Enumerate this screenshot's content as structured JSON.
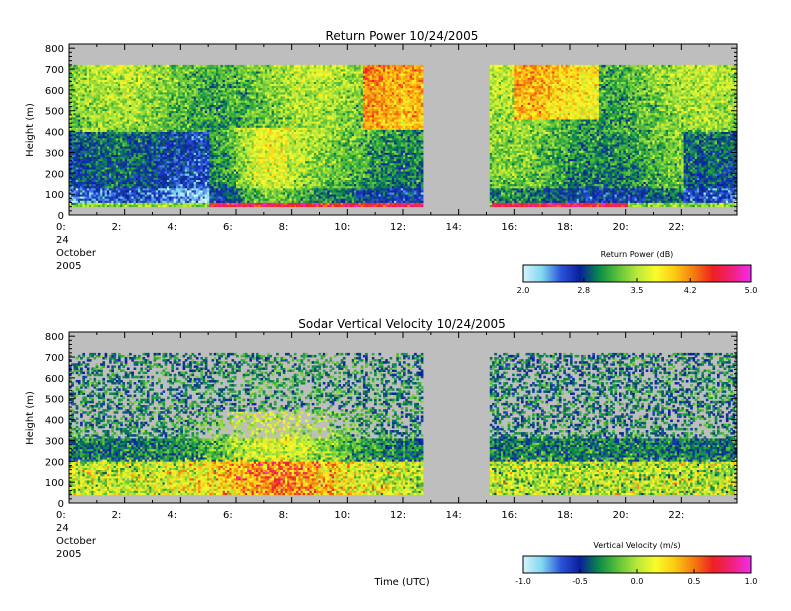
{
  "chart_data": [
    {
      "type": "heatmap",
      "title": "Return Power 10/24/2005",
      "ylabel": "Height (m)",
      "xlabel": "",
      "xlim": [
        0,
        24
      ],
      "ylim": [
        0,
        820
      ],
      "x_ticks": [
        "0:",
        "2:",
        "4:",
        "6:",
        "8:",
        "10:",
        "12:",
        "14:",
        "16:",
        "18:",
        "20:",
        "22:"
      ],
      "y_ticks": [
        "0",
        "100",
        "200",
        "300",
        "400",
        "500",
        "600",
        "700",
        "800"
      ],
      "date_label": [
        "24",
        "October",
        "2005"
      ],
      "data_gap_hours": [
        12.8,
        15.1
      ],
      "data_top_m": 720,
      "colorbar": {
        "label": "Return Power (dB)",
        "min": 2.0,
        "max": 5.0,
        "tick_labels": [
          "2.0",
          "2.8",
          "3.5",
          "4.2",
          "5.0"
        ],
        "colors": [
          "#d8f4fb",
          "#80d7f0",
          "#2a52d9",
          "#0a1f9a",
          "#0a8a4a",
          "#5ec23a",
          "#b8e83a",
          "#fbfb2a",
          "#fbc812",
          "#f57a10",
          "#ee2020",
          "#f0207a",
          "#f22cf0"
        ]
      }
    },
    {
      "type": "heatmap",
      "title": "Sodar Vertical Velocity 10/24/2005",
      "ylabel": "Height (m)",
      "xlabel": "Time (UTC)",
      "xlim": [
        0,
        24
      ],
      "ylim": [
        0,
        820
      ],
      "x_ticks": [
        "0:",
        "2:",
        "4:",
        "6:",
        "8:",
        "10:",
        "12:",
        "14:",
        "16:",
        "18:",
        "20:",
        "22:"
      ],
      "y_ticks": [
        "0",
        "100",
        "200",
        "300",
        "400",
        "500",
        "600",
        "700",
        "800"
      ],
      "date_label": [
        "24",
        "October",
        "2005"
      ],
      "data_gap_hours": [
        12.8,
        15.1
      ],
      "data_top_m": 720,
      "colorbar": {
        "label": "Vertical Velocity (m/s)",
        "min": -1.0,
        "max": 1.0,
        "tick_labels": [
          "-1.0",
          "-0.5",
          "0.0",
          "0.5",
          "1.0"
        ],
        "colors": [
          "#d8f4fb",
          "#80d7f0",
          "#2a52d9",
          "#0a1f9a",
          "#0a8a4a",
          "#5ec23a",
          "#b8e83a",
          "#fbfb2a",
          "#fbc812",
          "#f57a10",
          "#ee2020",
          "#f0207a",
          "#f22cf0"
        ]
      }
    }
  ]
}
